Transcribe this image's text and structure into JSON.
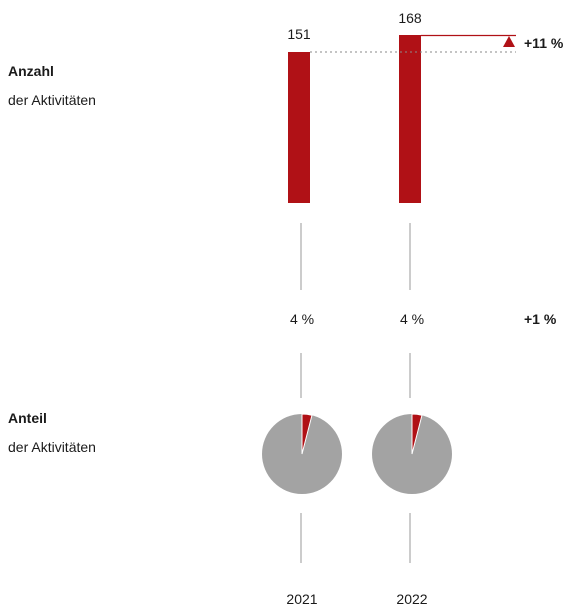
{
  "colors": {
    "accent": "#b01116",
    "pie_rest": "#a3a3a3",
    "connector": "#9a9a9a"
  },
  "rows": {
    "count": {
      "title": "Anzahl",
      "subtitle": "der Aktivitäten"
    },
    "share": {
      "title": "Anteil",
      "subtitle": "der Aktivitäten"
    }
  },
  "chart_data": [
    {
      "type": "bar",
      "categories": [
        "2021",
        "2022"
      ],
      "values": [
        151,
        168
      ],
      "value_labels": [
        "151",
        "168"
      ],
      "change_label": "+11 %",
      "change_direction": "up"
    },
    {
      "type": "pie",
      "categories": [
        "2021",
        "2022"
      ],
      "values_percent": [
        4,
        4
      ],
      "value_labels": [
        "4 %",
        "4 %"
      ],
      "change_label": "+1 %"
    }
  ],
  "years": [
    "2021",
    "2022"
  ]
}
